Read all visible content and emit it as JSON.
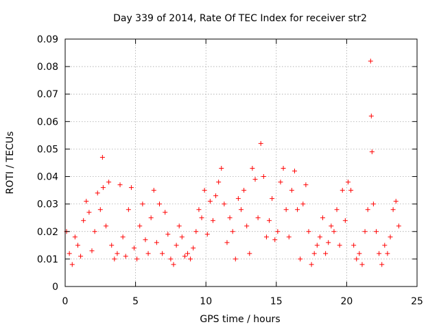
{
  "chart_data": {
    "type": "scatter",
    "title": "Day 339 of 2014, Rate Of TEC Index for receiver str2",
    "xlabel": "GPS time / hours",
    "ylabel": "ROTI / TECUs",
    "xlim": [
      0,
      25
    ],
    "ylim": [
      0,
      0.09
    ],
    "xticks": [
      0,
      5,
      10,
      15,
      20,
      25
    ],
    "xtick_labels": [
      "0",
      "5",
      "10",
      "15",
      "20",
      "25"
    ],
    "yticks": [
      0,
      0.01,
      0.02,
      0.03,
      0.04,
      0.05,
      0.06,
      0.07,
      0.08,
      0.09
    ],
    "ytick_labels": [
      "0",
      "0.01",
      "0.02",
      "0.03",
      "0.04",
      "0.05",
      "0.06",
      "0.07",
      "0.08",
      "0.09"
    ],
    "grid": true,
    "marker": "+",
    "series": [
      {
        "name": "ROTI",
        "color": "#ff0000",
        "x": [
          0.1,
          0.3,
          0.5,
          0.7,
          0.9,
          1.1,
          1.3,
          1.5,
          1.7,
          1.9,
          2.1,
          2.3,
          2.5,
          2.65,
          2.7,
          2.9,
          3.1,
          3.3,
          3.5,
          3.7,
          3.9,
          4.1,
          4.3,
          4.5,
          4.7,
          4.9,
          5.1,
          5.3,
          5.5,
          5.7,
          5.9,
          6.1,
          6.3,
          6.5,
          6.7,
          6.9,
          7.1,
          7.3,
          7.5,
          7.7,
          7.9,
          8.1,
          8.3,
          8.5,
          8.7,
          8.9,
          9.1,
          9.3,
          9.5,
          9.7,
          9.9,
          10.1,
          10.3,
          10.5,
          10.7,
          10.9,
          11.1,
          11.3,
          11.5,
          11.7,
          11.9,
          12.1,
          12.3,
          12.5,
          12.7,
          12.9,
          13.1,
          13.3,
          13.5,
          13.7,
          13.9,
          14.1,
          14.3,
          14.5,
          14.7,
          14.9,
          15.1,
          15.3,
          15.5,
          15.7,
          15.9,
          16.1,
          16.3,
          16.5,
          16.7,
          16.9,
          17.1,
          17.3,
          17.5,
          17.7,
          17.9,
          18.1,
          18.3,
          18.5,
          18.7,
          18.9,
          19.1,
          19.3,
          19.5,
          19.7,
          19.9,
          20.1,
          20.3,
          20.5,
          20.7,
          20.9,
          21.1,
          21.3,
          21.5,
          21.7,
          21.75,
          21.8,
          21.9,
          22.1,
          22.3,
          22.5,
          22.7,
          22.9,
          23.1,
          23.3,
          23.5,
          23.7
        ],
        "y": [
          0.02,
          0.012,
          0.008,
          0.018,
          0.015,
          0.011,
          0.024,
          0.031,
          0.027,
          0.013,
          0.02,
          0.034,
          0.028,
          0.047,
          0.036,
          0.022,
          0.038,
          0.015,
          0.01,
          0.012,
          0.037,
          0.018,
          0.011,
          0.028,
          0.036,
          0.014,
          0.01,
          0.022,
          0.03,
          0.017,
          0.012,
          0.025,
          0.035,
          0.016,
          0.03,
          0.012,
          0.027,
          0.019,
          0.01,
          0.008,
          0.015,
          0.022,
          0.018,
          0.011,
          0.012,
          0.01,
          0.014,
          0.02,
          0.028,
          0.025,
          0.035,
          0.019,
          0.031,
          0.024,
          0.033,
          0.038,
          0.043,
          0.03,
          0.016,
          0.025,
          0.02,
          0.01,
          0.032,
          0.028,
          0.035,
          0.022,
          0.012,
          0.043,
          0.039,
          0.025,
          0.052,
          0.04,
          0.018,
          0.024,
          0.032,
          0.017,
          0.02,
          0.038,
          0.043,
          0.028,
          0.018,
          0.035,
          0.042,
          0.028,
          0.01,
          0.03,
          0.037,
          0.02,
          0.008,
          0.012,
          0.015,
          0.018,
          0.025,
          0.012,
          0.016,
          0.022,
          0.02,
          0.028,
          0.015,
          0.035,
          0.024,
          0.038,
          0.035,
          0.015,
          0.01,
          0.012,
          0.008,
          0.02,
          0.028,
          0.082,
          0.062,
          0.049,
          0.03,
          0.02,
          0.012,
          0.008,
          0.015,
          0.012,
          0.018,
          0.028,
          0.031,
          0.022
        ]
      }
    ]
  }
}
